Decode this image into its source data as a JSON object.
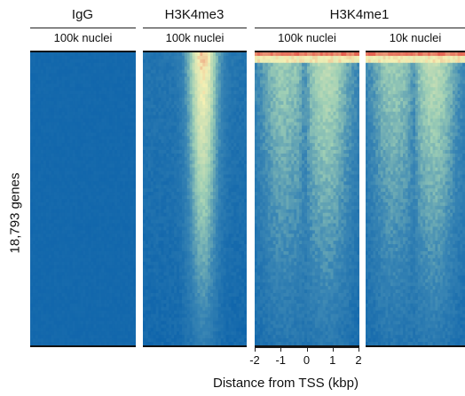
{
  "chart_data": {
    "type": "heatmap",
    "ylabel": "18,793 genes",
    "xlabel": "Distance from TSS (kbp)",
    "x_ticks": [
      "-2",
      "-1",
      "0",
      "1",
      "2"
    ],
    "xlim": [
      -2,
      2
    ],
    "groups": [
      {
        "title": "IgG",
        "panels": [
          {
            "subtitle": "100k nuclei",
            "profile": "flat"
          }
        ]
      },
      {
        "title": "H3K4me3",
        "panels": [
          {
            "subtitle": "100k nuclei",
            "profile": "broad-center"
          }
        ]
      },
      {
        "title": "H3K4me1",
        "panels": [
          {
            "subtitle": "100k nuclei",
            "profile": "bimodal-dip"
          },
          {
            "subtitle": "10k nuclei",
            "profile": "bimodal-dip"
          }
        ]
      }
    ],
    "colorscale": [
      "#0e64ab",
      "#3a86b4",
      "#9fcfb5",
      "#f4f0b4",
      "#e35b4d"
    ]
  }
}
